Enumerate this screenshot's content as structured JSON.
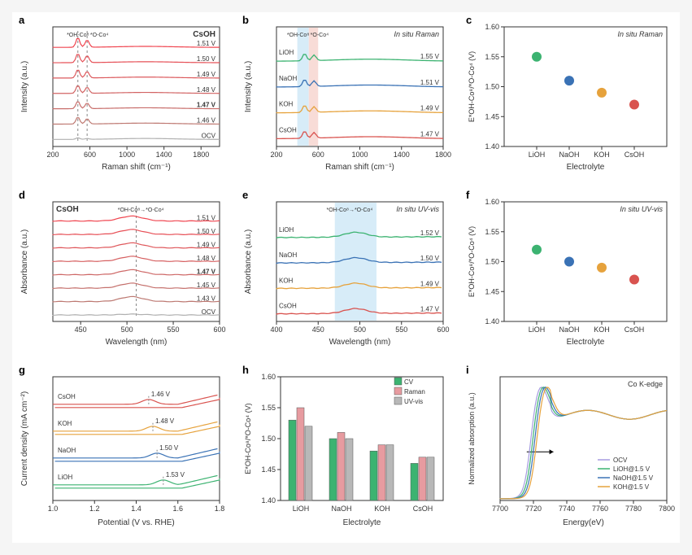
{
  "colors": {
    "green": "#3cb371",
    "blue": "#3a72b5",
    "orange": "#e6a23c",
    "red": "#d9534f",
    "grey": "#b0b0b0",
    "grid": "#e5e5e5",
    "axis": "#333333",
    "bg": "#ffffff"
  },
  "panelA": {
    "label": "a",
    "title": "CsOH",
    "xlabel": "Raman shift (cm⁻¹)",
    "ylabel": "Intensity (a.u.)",
    "xlim": [
      200,
      2000
    ],
    "xtick_step": 400,
    "anno1": "*OH-Co⁸ *O-Co⁴",
    "curves": [
      "1.51 V",
      "1.50 V",
      "1.49 V",
      "1.48 V",
      "1.47 V",
      "1.46 V",
      "OCV"
    ],
    "bold_idx": 4,
    "dash_x": [
      470,
      570
    ]
  },
  "panelB": {
    "label": "b",
    "toptitle": "In situ Raman",
    "xlabel": "Raman shift (cm⁻¹)",
    "ylabel": "Intensity (a.u.)",
    "xlim": [
      200,
      1800
    ],
    "xtick_step": 400,
    "anno1": "*OH-Co⁸ *O-Co⁴",
    "curves": [
      {
        "name": "LiOH",
        "color": "green",
        "v": "1.55 V"
      },
      {
        "name": "NaOH",
        "color": "blue",
        "v": "1.51 V"
      },
      {
        "name": "KOH",
        "color": "orange",
        "v": "1.49 V"
      },
      {
        "name": "CsOH",
        "color": "red",
        "v": "1.47 V"
      }
    ],
    "band1": {
      "from": 400,
      "to": 510,
      "color": "#d7ecf8"
    },
    "band2": {
      "from": 510,
      "to": 600,
      "color": "#f8dcd7"
    }
  },
  "panelC": {
    "label": "c",
    "toptitle": "In situ Raman",
    "xlabel": "Electrolyte",
    "ylabel": "E*OH-Co⁸/*O-Co⁴ (V)",
    "ylim": [
      1.4,
      1.6
    ],
    "ytick_step": 0.05,
    "categories": [
      "LiOH",
      "NaOH",
      "KOH",
      "CsOH"
    ],
    "values": [
      1.55,
      1.51,
      1.49,
      1.47
    ],
    "pt_colors": [
      "green",
      "blue",
      "orange",
      "red"
    ]
  },
  "panelD": {
    "label": "d",
    "title": "CsOH",
    "xlabel": "Wavelength (nm)",
    "ylabel": "Absorbance (a.u.)",
    "xlim": [
      420,
      600
    ],
    "xticks": [
      450,
      500,
      550,
      600
    ],
    "anno1": "*OH-Co⁸→*O-Co⁴",
    "curves": [
      "1.51 V",
      "1.50 V",
      "1.49 V",
      "1.48 V",
      "1.47 V",
      "1.45 V",
      "1.43 V",
      "OCV"
    ],
    "bold_idx": 4,
    "dash_x": [
      510
    ]
  },
  "panelE": {
    "label": "e",
    "toptitle": "In situ UV-vis",
    "xlabel": "Wavelength (nm)",
    "ylabel": "Absorbance (a.u.)",
    "xlim": [
      400,
      600
    ],
    "xtick_step": 50,
    "anno1": "*OH-Co⁸→*O-Co⁴",
    "curves": [
      {
        "name": "LiOH",
        "color": "green",
        "v": "1.52 V"
      },
      {
        "name": "NaOH",
        "color": "blue",
        "v": "1.50 V"
      },
      {
        "name": "KOH",
        "color": "orange",
        "v": "1.49 V"
      },
      {
        "name": "CsOH",
        "color": "red",
        "v": "1.47 V"
      }
    ],
    "band": {
      "from": 470,
      "to": 520,
      "color": "#d7ecf8"
    }
  },
  "panelF": {
    "label": "f",
    "toptitle": "In situ UV-vis",
    "xlabel": "Electrolyte",
    "ylabel": "E*OH-Co⁸/*O-Co⁴ (V)",
    "ylim": [
      1.4,
      1.6
    ],
    "ytick_step": 0.05,
    "categories": [
      "LiOH",
      "NaOH",
      "KOH",
      "CsOH"
    ],
    "values": [
      1.52,
      1.5,
      1.49,
      1.47
    ],
    "pt_colors": [
      "green",
      "blue",
      "orange",
      "red"
    ]
  },
  "panelG": {
    "label": "g",
    "xlabel": "Potential (V vs. RHE)",
    "ylabel": "Current density (mA cm⁻²)",
    "xlim": [
      1.0,
      1.8
    ],
    "xtick_step": 0.2,
    "curves": [
      {
        "name": "CsOH",
        "color": "red",
        "v": "1.46 V",
        "vpos": 1.46
      },
      {
        "name": "KOH",
        "color": "orange",
        "v": "1.48 V",
        "vpos": 1.48
      },
      {
        "name": "NaOH",
        "color": "blue",
        "v": "1.50 V",
        "vpos": 1.5
      },
      {
        "name": "LiOH",
        "color": "green",
        "v": "1.53 V",
        "vpos": 1.53
      }
    ]
  },
  "panelH": {
    "label": "h",
    "xlabel": "Electrolyte",
    "ylabel": "E*OH-Co⁸/*O-Co⁴ (V)",
    "ylim": [
      1.4,
      1.6
    ],
    "ytick_step": 0.05,
    "categories": [
      "LiOH",
      "NaOH",
      "KOH",
      "CsOH"
    ],
    "series": [
      {
        "name": "CV",
        "color": "#3cb371",
        "values": [
          1.53,
          1.5,
          1.48,
          1.46
        ]
      },
      {
        "name": "Raman",
        "color": "#e79ba0",
        "values": [
          1.55,
          1.51,
          1.49,
          1.47
        ]
      },
      {
        "name": "UV-vis",
        "color": "#b8b8b8",
        "values": [
          1.52,
          1.5,
          1.49,
          1.47
        ]
      }
    ]
  },
  "panelI": {
    "label": "i",
    "toptitle": "Co K-edge",
    "xlabel": "Energy(eV)",
    "ylabel": "Normalized absorption (a.u.)",
    "xlim": [
      7700,
      7800
    ],
    "xtick_step": 20,
    "legend": [
      {
        "name": "OCV",
        "color": "#a59be0"
      },
      {
        "name": "LiOH@1.5 V",
        "color": "#3cb371"
      },
      {
        "name": "NaOH@1.5 V",
        "color": "#3a72b5"
      },
      {
        "name": "KOH@1.5 V",
        "color": "#e6a23c"
      }
    ]
  }
}
